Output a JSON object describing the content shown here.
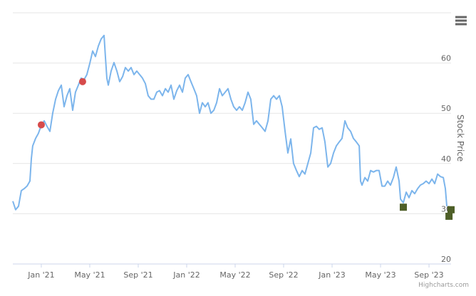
{
  "chart_data": {
    "type": "line",
    "ylabel": "Stock Price",
    "credit": "Highcharts.com",
    "xlim": [
      -2.35,
      33.82
    ],
    "ylim": [
      20,
      70
    ],
    "yticks": [
      20,
      30,
      40,
      50,
      60
    ],
    "xticks": [
      {
        "value": 0,
        "label": "Jan '21"
      },
      {
        "value": 4,
        "label": "May '21"
      },
      {
        "value": 8,
        "label": "Sep '21"
      },
      {
        "value": 12,
        "label": "Jan '22"
      },
      {
        "value": 16,
        "label": "May '22"
      },
      {
        "value": 20,
        "label": "Sep '22"
      },
      {
        "value": 24,
        "label": "Jan '23"
      },
      {
        "value": 28,
        "label": "May '23"
      },
      {
        "value": 32,
        "label": "Sep '23"
      }
    ],
    "grid": true,
    "x": [
      -2.35,
      -2.12,
      -1.88,
      -1.65,
      -1.41,
      -1.18,
      -0.94,
      -0.82,
      -0.71,
      -0.47,
      -0.24,
      0,
      0.24,
      0.47,
      0.71,
      0.94,
      1.18,
      1.41,
      1.65,
      1.88,
      2.12,
      2.35,
      2.59,
      2.82,
      3.06,
      3.29,
      3.53,
      3.76,
      4,
      4.24,
      4.47,
      4.71,
      4.94,
      5.18,
      5.29,
      5.41,
      5.53,
      5.76,
      6,
      6.24,
      6.47,
      6.71,
      6.94,
      7.18,
      7.41,
      7.65,
      7.88,
      8.12,
      8.35,
      8.59,
      8.82,
      9.06,
      9.29,
      9.53,
      9.76,
      10,
      10.24,
      10.47,
      10.71,
      10.94,
      11.18,
      11.41,
      11.65,
      11.88,
      12.12,
      12.35,
      12.59,
      12.82,
      13.06,
      13.29,
      13.53,
      13.76,
      14,
      14.24,
      14.47,
      14.71,
      14.94,
      15.18,
      15.41,
      15.65,
      15.88,
      16.12,
      16.35,
      16.59,
      16.82,
      17.06,
      17.29,
      17.53,
      17.76,
      18,
      18.24,
      18.47,
      18.71,
      18.94,
      19.18,
      19.41,
      19.65,
      19.88,
      20.12,
      20.35,
      20.59,
      20.82,
      21.06,
      21.29,
      21.53,
      21.76,
      22,
      22.24,
      22.47,
      22.71,
      22.94,
      23.18,
      23.41,
      23.65,
      23.88,
      24.12,
      24.35,
      24.59,
      24.82,
      25.06,
      25.29,
      25.53,
      25.76,
      26,
      26.24,
      26.35,
      26.47,
      26.71,
      26.94,
      27.18,
      27.41,
      27.65,
      27.88,
      28.12,
      28.35,
      28.59,
      28.82,
      29.06,
      29.29,
      29.53,
      29.65,
      29.88,
      30.12,
      30.35,
      30.59,
      30.82,
      31.06,
      31.29,
      31.53,
      31.76,
      32,
      32.24,
      32.47,
      32.71,
      32.94,
      33.18,
      33.35,
      33.47
    ],
    "series": [
      {
        "color": "#7cb5ec",
        "values": [
          32.5,
          30.8,
          31.5,
          34.6,
          35,
          35.5,
          36.5,
          41,
          43.5,
          45,
          46,
          47.6,
          48.5,
          47.4,
          46.4,
          50,
          52.8,
          54.5,
          55.6,
          51.3,
          53.5,
          54.9,
          50.6,
          54.2,
          55.6,
          57,
          56.7,
          57.7,
          59.9,
          62.4,
          61.3,
          63.4,
          64.8,
          65.5,
          61.3,
          57,
          55.6,
          58.4,
          60.1,
          58.4,
          56.3,
          57.3,
          59.1,
          58.4,
          59.1,
          57.7,
          58.4,
          57.7,
          57,
          55.9,
          53.5,
          52.8,
          52.8,
          54.2,
          54.5,
          53.5,
          54.9,
          54.2,
          55.6,
          52.8,
          54.5,
          55.6,
          54.2,
          57,
          57.7,
          56.3,
          54.9,
          53.5,
          50,
          52.1,
          51.3,
          52.1,
          50,
          50.6,
          52.1,
          54.9,
          53.5,
          54.2,
          54.9,
          52.8,
          51.3,
          50.6,
          51.3,
          50.6,
          52.1,
          54.2,
          52.8,
          47.8,
          48.5,
          47.8,
          47.1,
          46.4,
          48.5,
          52.8,
          53.5,
          52.8,
          53.5,
          51.3,
          46.4,
          42.1,
          44.9,
          40,
          38.6,
          37.4,
          38.6,
          37.9,
          40,
          42.1,
          47.1,
          47.4,
          46.8,
          47.1,
          44.3,
          39.3,
          40,
          42.1,
          43.5,
          44.3,
          45,
          48.5,
          47.1,
          46.4,
          45,
          44.3,
          43.5,
          36.5,
          35.7,
          37.2,
          36.5,
          38.6,
          38.3,
          38.6,
          38.6,
          35.5,
          35.5,
          36.5,
          35.7,
          37.2,
          39.3,
          36.5,
          32.9,
          32.2,
          34.3,
          33.2,
          34.6,
          34,
          35,
          35.7,
          36,
          36.5,
          36,
          36.9,
          36,
          37.9,
          37.4,
          37.2,
          35,
          31.5
        ]
      }
    ],
    "markers": [
      {
        "shape": "circle",
        "color": "#d64b4b",
        "x": [
          0,
          3.41
        ],
        "values": [
          47.7,
          56.3
        ]
      },
      {
        "shape": "square",
        "color": "#4e5f28",
        "x": [
          29.88,
          33.65,
          33.82
        ],
        "values": [
          31.3,
          29.5,
          30.8
        ]
      }
    ]
  }
}
